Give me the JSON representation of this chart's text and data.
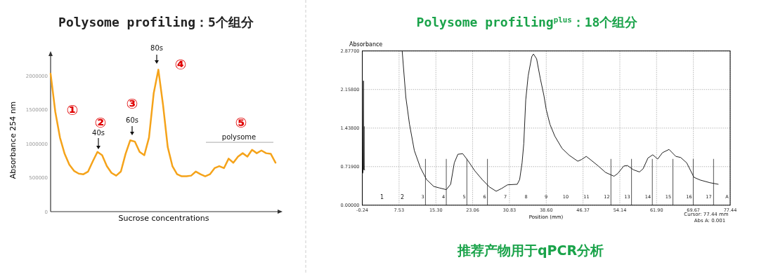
{
  "chart_data": [
    {
      "type": "line",
      "title": "Polysome profiling：5个组分",
      "xlabel": "Sucrose concentrations",
      "ylabel": "Absorbance 254 nm",
      "categories": [
        null,
        null,
        null,
        null,
        null,
        null,
        null,
        null,
        null,
        null,
        null,
        null,
        null,
        null,
        null,
        null,
        null,
        null,
        null,
        null,
        null,
        null,
        null,
        null,
        null,
        null,
        null,
        null,
        null,
        null,
        null,
        null,
        null,
        null,
        null,
        null,
        null,
        null,
        null,
        null,
        null,
        null,
        null,
        null,
        null,
        null,
        null,
        null,
        null
      ],
      "series": [
        {
          "color": "#f5a31a",
          "values": [
            2030000,
            1470000,
            1090000,
            850000,
            690000,
            600000,
            560000,
            550000,
            590000,
            740000,
            880000,
            830000,
            670000,
            570000,
            530000,
            590000,
            850000,
            1050000,
            1030000,
            880000,
            830000,
            1090000,
            1740000,
            2090000,
            1570000,
            950000,
            670000,
            550000,
            520000,
            520000,
            530000,
            590000,
            550000,
            520000,
            550000,
            640000,
            670000,
            640000,
            780000,
            720000,
            810000,
            860000,
            810000,
            910000,
            860000,
            900000,
            860000,
            850000,
            720000
          ]
        }
      ],
      "ylim": [
        0,
        2290000
      ],
      "yticks": [
        0,
        500000,
        1000000,
        1500000,
        2000000
      ],
      "annotations": [
        "40s",
        "60s",
        "80s",
        "polysome",
        "①",
        "②",
        "③",
        "④",
        "⑤"
      ]
    },
    {
      "type": "line",
      "title": "Polysome profiling$^{plus}$：18个组分",
      "xlabel": "Position (mm)",
      "ylabel": "Absorbance",
      "x": [
        -0.24,
        -0.09,
        0.02,
        0.07,
        0.12,
        0.17,
        0.27,
        4.0,
        8.19,
        8.96,
        9.73,
        10.75,
        12.03,
        13.31,
        14.84,
        16.12,
        17.5,
        18.42,
        19.19,
        19.95,
        20.97,
        22.0,
        23.53,
        25.06,
        26.6,
        28.03,
        29.15,
        30.43,
        32.48,
        32.99,
        33.5,
        33.86,
        34.27,
        34.78,
        35.54,
        35.9,
        36.57,
        37.33,
        38.1,
        38.61,
        39.38,
        40.4,
        41.93,
        43.47,
        45.26,
        46.02,
        47.05,
        48.07,
        49.6,
        51.14,
        52.92,
        53.69,
        54.97,
        55.74,
        57.01,
        58.29,
        59.06,
        60.08,
        61.1,
        62.13,
        63.15,
        64.53,
        65.96,
        66.98,
        68.26,
        69.79,
        71.07,
        73.12,
        74.91
      ],
      "series": [
        {
          "color": "#222222",
          "values": [
            0.58,
            0.61,
            2.32,
            0.66,
            1.47,
            0.66,
            0.66,
            null,
            2.87,
            2.01,
            1.51,
            1.02,
            0.7,
            0.48,
            0.35,
            0.32,
            0.29,
            0.39,
            0.79,
            0.95,
            0.96,
            0.84,
            0.64,
            0.48,
            0.34,
            0.26,
            0.31,
            0.38,
            0.39,
            0.48,
            0.79,
            1.15,
            1.96,
            2.41,
            2.77,
            2.82,
            2.73,
            2.37,
            2.05,
            1.78,
            1.51,
            1.29,
            1.06,
            0.93,
            0.82,
            0.85,
            0.91,
            0.84,
            0.73,
            0.61,
            0.54,
            0.59,
            0.73,
            0.74,
            0.66,
            0.62,
            0.68,
            0.88,
            0.94,
            0.86,
            0.98,
            1.04,
            0.91,
            0.89,
            0.79,
            0.52,
            0.47,
            0.42,
            0.39
          ]
        }
      ],
      "xlim": [
        -0.24,
        77.44
      ],
      "xticks": [
        -0.24,
        7.53,
        {
          "value": 15.3,
          "label": "15.30"
        },
        23.06,
        30.83,
        {
          "value": 38.6,
          "label": "38.60"
        },
        46.37,
        54.14,
        {
          "value": 61.9,
          "label": "61.90"
        },
        69.67,
        77.44
      ],
      "ylim": [
        0,
        2.877
      ],
      "yticks": [
        {
          "value": 0,
          "label": "0.00000"
        },
        {
          "value": 0.719,
          "label": "0.71900"
        },
        {
          "value": 1.438,
          "label": "1.43800"
        },
        {
          "value": 2.158,
          "label": "2.15800"
        },
        {
          "value": 2.877,
          "label": "2.87700"
        }
      ],
      "grid": true,
      "ref_lines": [
        {
          "axis": "x",
          "value": 13.1,
          "color": "#555555"
        },
        {
          "axis": "x",
          "value": 17.5,
          "color": "#555555"
        },
        {
          "axis": "x",
          "value": 21.84,
          "color": "#555555"
        },
        {
          "axis": "x",
          "value": 26.19,
          "color": "#555555"
        },
        {
          "axis": "x",
          "value": 52.26,
          "color": "#555555"
        },
        {
          "axis": "x",
          "value": 56.61,
          "color": "#555555"
        },
        {
          "axis": "x",
          "value": 61.0,
          "color": "#555555"
        },
        {
          "axis": "x",
          "value": 65.35,
          "color": "#555555"
        },
        {
          "axis": "x",
          "value": 69.64,
          "color": "#555555"
        },
        {
          "axis": "x",
          "value": 73.93,
          "color": "#555555"
        }
      ],
      "annotations": [
        "1",
        "2",
        "3",
        "4",
        "5",
        "6",
        "7",
        "8",
        "9",
        "10",
        "11",
        "12",
        "13",
        "14",
        "15",
        "16",
        "17",
        "A",
        "Cursor: 77.44 mm",
        "Abs A: 0.001",
        "推荐产物用于qPCR分析"
      ]
    }
  ]
}
